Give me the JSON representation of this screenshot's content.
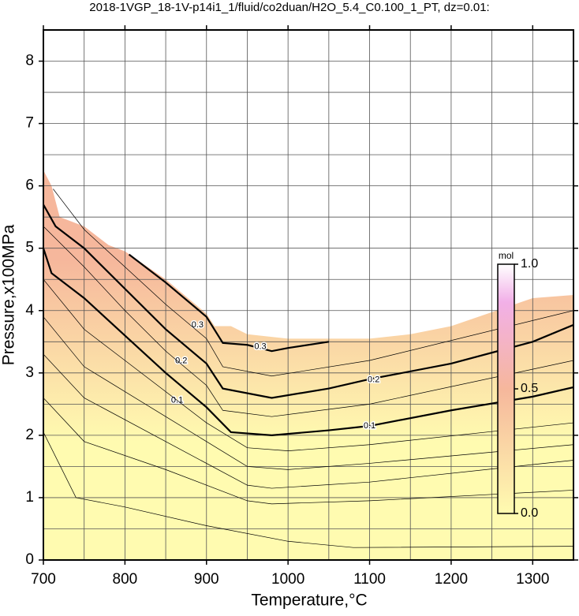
{
  "chart_data": {
    "type": "contour",
    "title": "2018-1VGP_18-1V-p14i1_1/fluid/co2duan/H2O_5.4_C0.100_1_PT, dz=0.01:",
    "xlabel": "Temperature,°C",
    "ylabel": "Pressure,x100MPa",
    "xlim": [
      700,
      1350
    ],
    "ylim": [
      0,
      8.5
    ],
    "xticks": [
      700,
      800,
      900,
      1000,
      1100,
      1200,
      1300
    ],
    "yticks": [
      0,
      1,
      2,
      3,
      4,
      5,
      6,
      7,
      8
    ],
    "xgrid_step": 50,
    "ygrid_step": 0.5,
    "grid": true,
    "colormap": [
      "#fffbb0",
      "#f6b79c",
      "#f2b0e8"
    ],
    "boundary": {
      "x": [
        700,
        710,
        720,
        750,
        780,
        800,
        850,
        900,
        910,
        930,
        950,
        1000,
        1100,
        1150,
        1200,
        1300,
        1350
      ],
      "y": [
        6.25,
        6.0,
        5.5,
        5.35,
        5.05,
        4.95,
        4.5,
        3.95,
        3.75,
        3.75,
        3.62,
        3.55,
        3.55,
        3.62,
        3.75,
        4.2,
        4.25
      ]
    },
    "contours": [
      {
        "level": 0.1,
        "x": [
          700,
          710,
          750,
          800,
          850,
          900,
          930,
          980,
          1050,
          1100,
          1200,
          1300,
          1350
        ],
        "y": [
          5.0,
          4.6,
          4.2,
          3.6,
          3.0,
          2.45,
          2.05,
          2.0,
          2.08,
          2.15,
          2.4,
          2.62,
          2.77
        ],
        "label_x": [
          864,
          1100
        ],
        "label_y": [
          2.56,
          2.15
        ]
      },
      {
        "level": 0.2,
        "x": [
          700,
          715,
          750,
          800,
          850,
          900,
          920,
          980,
          1050,
          1100,
          1200,
          1300,
          1350
        ],
        "y": [
          5.7,
          5.35,
          5.0,
          4.35,
          3.7,
          3.15,
          2.75,
          2.6,
          2.75,
          2.9,
          3.15,
          3.5,
          3.77
        ],
        "label_x": [
          869,
          1105
        ],
        "label_y": [
          3.19,
          2.89
        ]
      },
      {
        "level": 0.3,
        "x": [
          805,
          850,
          900,
          920,
          950,
          980,
          1000,
          1050
        ],
        "y": [
          4.9,
          4.45,
          3.9,
          3.48,
          3.45,
          3.35,
          3.4,
          3.5
        ],
        "label_x": [
          889,
          966
        ],
        "label_y": [
          3.77,
          3.42
        ]
      },
      {
        "x": [
          700,
          750,
          800,
          900,
          950,
          1000,
          1100,
          1350
        ],
        "y": [
          4.5,
          3.7,
          3.2,
          2.2,
          1.8,
          1.75,
          1.85,
          2.2
        ]
      },
      {
        "x": [
          700,
          750,
          850,
          950,
          1000,
          1100,
          1350
        ],
        "y": [
          3.9,
          3.1,
          2.3,
          1.5,
          1.45,
          1.55,
          1.85
        ]
      },
      {
        "x": [
          700,
          750,
          850,
          950,
          980,
          1100,
          1350
        ],
        "y": [
          3.3,
          2.6,
          1.9,
          1.2,
          1.15,
          1.25,
          1.6
        ]
      },
      {
        "x": [
          700,
          750,
          850,
          950,
          980,
          1100,
          1350
        ],
        "y": [
          2.6,
          1.9,
          1.45,
          0.95,
          0.9,
          0.95,
          1.12
        ]
      },
      {
        "x": [
          700,
          740,
          800,
          900,
          1000,
          1080,
          1350
        ],
        "y": [
          2.05,
          1.0,
          0.85,
          0.55,
          0.3,
          0.2,
          0.22
        ]
      },
      {
        "x": [
          700,
          750,
          800,
          850,
          900,
          920,
          980,
          1100,
          1350
        ],
        "y": [
          5.35,
          4.7,
          4.0,
          3.35,
          2.8,
          2.4,
          2.3,
          2.5,
          3.2
        ]
      },
      {
        "x": [
          712,
          750,
          800,
          850,
          900,
          920,
          980,
          1100,
          1350
        ],
        "y": [
          5.95,
          5.3,
          4.7,
          4.1,
          3.55,
          3.1,
          2.95,
          3.2,
          4.0
        ]
      }
    ],
    "colorbar": {
      "label": "mol",
      "clim": [
        0,
        1
      ],
      "ticks": [
        {
          "value": 0,
          "label": "0.0"
        },
        0.5,
        {
          "value": 1,
          "label": "1.0"
        }
      ]
    }
  }
}
